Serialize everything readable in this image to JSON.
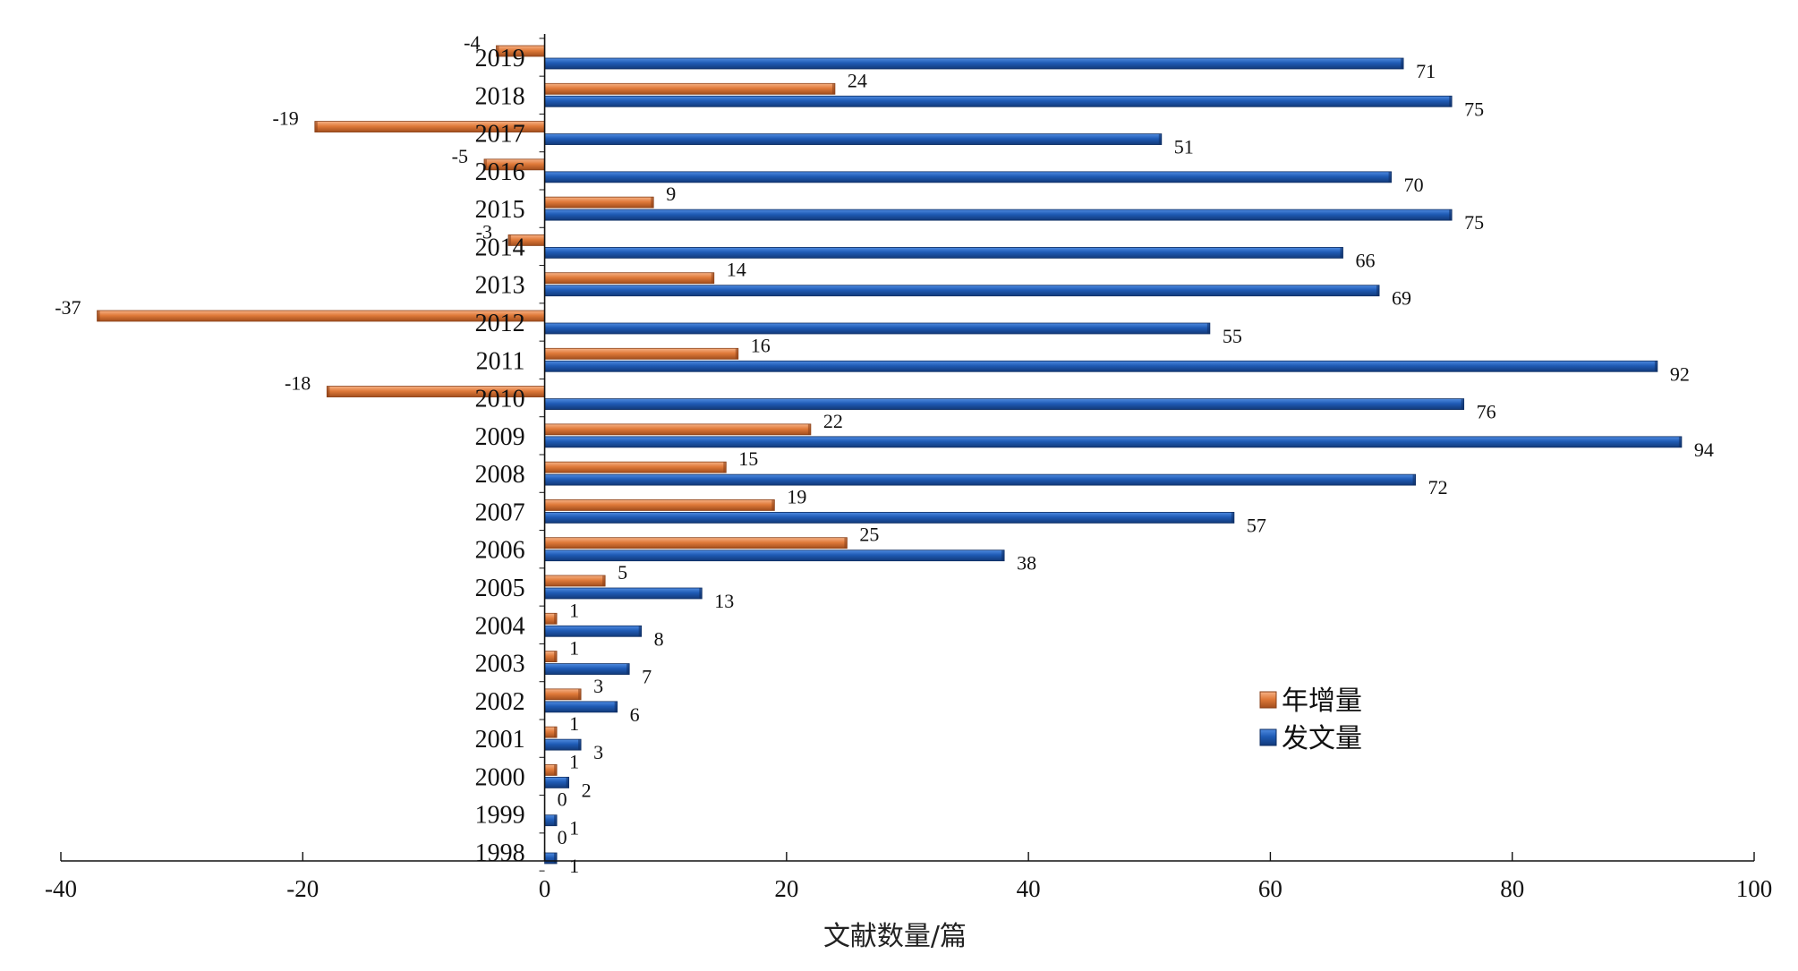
{
  "chart_data": {
    "type": "bar",
    "orientation": "horizontal",
    "title": "",
    "xlabel": "文献数量/篇",
    "ylabel": "",
    "xlim": [
      -40,
      100
    ],
    "xticks": [
      -40,
      -20,
      0,
      20,
      40,
      60,
      80,
      100
    ],
    "grid": false,
    "legend_position": "right-center",
    "categories": [
      "2019",
      "2018",
      "2017",
      "2016",
      "2015",
      "2014",
      "2013",
      "2012",
      "2011",
      "2010",
      "2009",
      "2008",
      "2007",
      "2006",
      "2005",
      "2004",
      "2003",
      "2002",
      "2001",
      "2000",
      "1999",
      "1998"
    ],
    "series": [
      {
        "name": "年增量",
        "color": "#E07A3A",
        "values": [
          -4,
          24,
          -19,
          -5,
          9,
          -3,
          14,
          -37,
          16,
          -18,
          22,
          15,
          19,
          25,
          5,
          1,
          1,
          3,
          1,
          1,
          0,
          0
        ]
      },
      {
        "name": "发文量",
        "color": "#1F5BB5",
        "values": [
          71,
          75,
          51,
          70,
          75,
          66,
          69,
          55,
          92,
          76,
          94,
          72,
          57,
          38,
          13,
          8,
          7,
          6,
          3,
          2,
          1,
          1
        ]
      }
    ]
  }
}
